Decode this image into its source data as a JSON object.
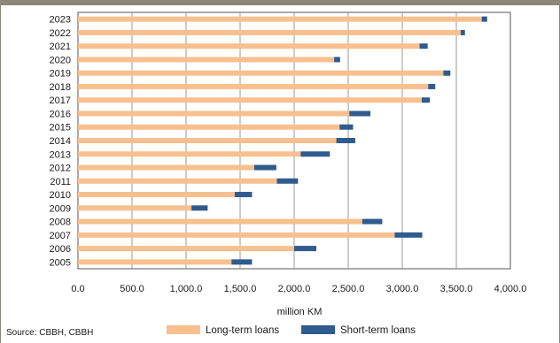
{
  "chart_data": {
    "type": "bar",
    "orientation": "horizontal",
    "stacked": true,
    "categories": [
      "2023",
      "2022",
      "2021",
      "2020",
      "2019",
      "2018",
      "2017",
      "2016",
      "2015",
      "2014",
      "2013",
      "2012",
      "2011",
      "2010",
      "2009",
      "2008",
      "2007",
      "2006",
      "2005"
    ],
    "series": [
      {
        "name": "Long-term loans",
        "color": "#f8c08f",
        "values": [
          3735,
          3540,
          3160,
          2370,
          3380,
          3240,
          3180,
          2510,
          2420,
          2390,
          2060,
          1630,
          1840,
          1450,
          1050,
          2630,
          2930,
          2000,
          1420
        ]
      },
      {
        "name": "Short-term loans",
        "color": "#2f5b8e",
        "values": [
          50,
          40,
          75,
          55,
          65,
          65,
          75,
          195,
          125,
          175,
          270,
          205,
          195,
          160,
          150,
          185,
          255,
          205,
          190
        ]
      }
    ],
    "xlabel": "million KM",
    "xlim": [
      0,
      4000
    ],
    "xticks": [
      "0.0",
      "500.0",
      "1,000.0",
      "1,500.0",
      "2,000.0",
      "2,500.0",
      "3,000.0",
      "3,500.0",
      "4,000.0"
    ],
    "grid": "vertical",
    "legend": "bottom"
  },
  "source": "Source: CBBH, CBBH"
}
